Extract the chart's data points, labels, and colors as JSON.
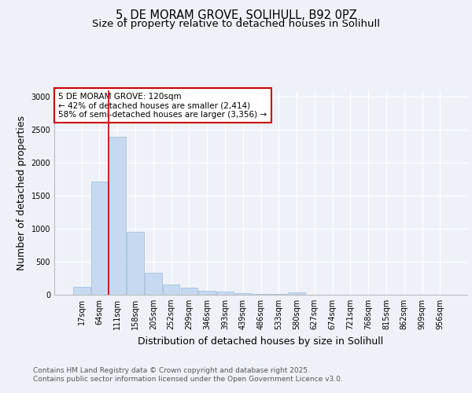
{
  "title_line1": "5, DE MORAM GROVE, SOLIHULL, B92 0PZ",
  "title_line2": "Size of property relative to detached houses in Solihull",
  "xlabel": "Distribution of detached houses by size in Solihull",
  "ylabel": "Number of detached properties",
  "footer_line1": "Contains HM Land Registry data © Crown copyright and database right 2025.",
  "footer_line2": "Contains public sector information licensed under the Open Government Licence v3.0.",
  "bin_labels": [
    "17sqm",
    "64sqm",
    "111sqm",
    "158sqm",
    "205sqm",
    "252sqm",
    "299sqm",
    "346sqm",
    "393sqm",
    "439sqm",
    "486sqm",
    "533sqm",
    "580sqm",
    "627sqm",
    "674sqm",
    "721sqm",
    "768sqm",
    "815sqm",
    "862sqm",
    "909sqm",
    "956sqm"
  ],
  "bar_values": [
    125,
    1720,
    2400,
    950,
    330,
    155,
    105,
    60,
    50,
    20,
    15,
    10,
    30,
    0,
    0,
    0,
    0,
    0,
    0,
    0,
    0
  ],
  "bar_color": "#c6d9f0",
  "bar_edge_color": "#9dbad8",
  "highlight_bin_index": 2,
  "highlight_line_color": "#cc0000",
  "annotation_line1": "5 DE MORAM GROVE: 120sqm",
  "annotation_line2": "← 42% of detached houses are smaller (2,414)",
  "annotation_line3": "58% of semi-detached houses are larger (3,356) →",
  "annotation_box_edge_color": "#cc0000",
  "ylim": [
    0,
    3100
  ],
  "yticks": [
    0,
    500,
    1000,
    1500,
    2000,
    2500,
    3000
  ],
  "background_color": "#eef2f8",
  "grid_color": "#ffffff",
  "title_fontsize": 10.5,
  "subtitle_fontsize": 9.5,
  "axis_label_fontsize": 9,
  "tick_fontsize": 7,
  "annotation_fontsize": 7.5,
  "footer_fontsize": 6.5
}
